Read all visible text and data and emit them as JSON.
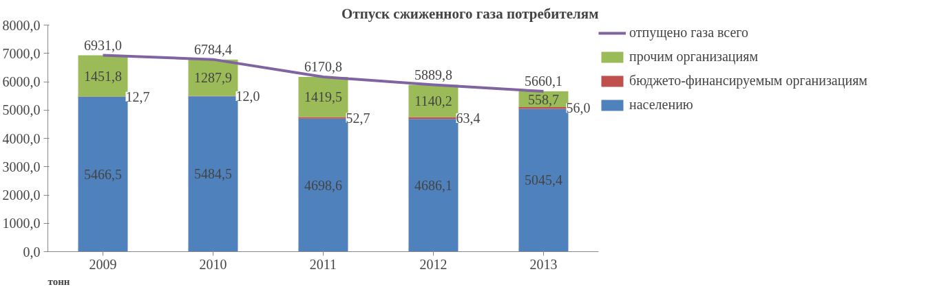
{
  "chart_data": {
    "type": "bar",
    "stacked": true,
    "title": "Отпуск сжиженного газа потребителям",
    "categories": [
      "2009",
      "2010",
      "2011",
      "2012",
      "2013"
    ],
    "series": [
      {
        "name": "населению",
        "color": "#4f81bd",
        "values": [
          5466.5,
          5484.5,
          4698.6,
          4686.1,
          5045.4
        ],
        "value_labels": [
          "5466,5",
          "5484,5",
          "4698,6",
          "4686,1",
          "5045,4"
        ]
      },
      {
        "name": "бюджето-финансируемым организациям",
        "color": "#c0504d",
        "values": [
          12.7,
          12.0,
          52.7,
          63.4,
          56.0
        ],
        "value_labels": [
          "12,7",
          "12,0",
          "52,7",
          "63,4",
          "56,0"
        ]
      },
      {
        "name": "прочим организациям",
        "color": "#9bbb59",
        "values": [
          1451.8,
          1287.9,
          1419.5,
          1140.2,
          558.7
        ],
        "value_labels": [
          "1451,8",
          "1287,9",
          "1419,5",
          "1140,2",
          "558,7"
        ]
      },
      {
        "name": "отпущено газа всего",
        "type": "line",
        "color": "#8064a2",
        "values": [
          6931.0,
          6784.4,
          6170.8,
          5889.8,
          5660.1
        ],
        "value_labels": [
          "6931,0",
          "6784,4",
          "6170,8",
          "5889,8",
          "5660,1"
        ]
      }
    ],
    "ylim": [
      0,
      8000
    ],
    "yticks": [
      {
        "value": 0,
        "label": "0,0"
      },
      {
        "value": 1000,
        "label": "1000,0"
      },
      {
        "value": 2000,
        "label": "2000,0"
      },
      {
        "value": 3000,
        "label": "3000,0"
      },
      {
        "value": 4000,
        "label": "4000,0"
      },
      {
        "value": 5000,
        "label": "5000,0"
      },
      {
        "value": 6000,
        "label": "6000,0"
      },
      {
        "value": 7000,
        "label": "7000,0"
      },
      {
        "value": 8000,
        "label": "8000,0"
      }
    ],
    "grid": false,
    "legend": "right",
    "annotations": [
      "тонн"
    ]
  }
}
